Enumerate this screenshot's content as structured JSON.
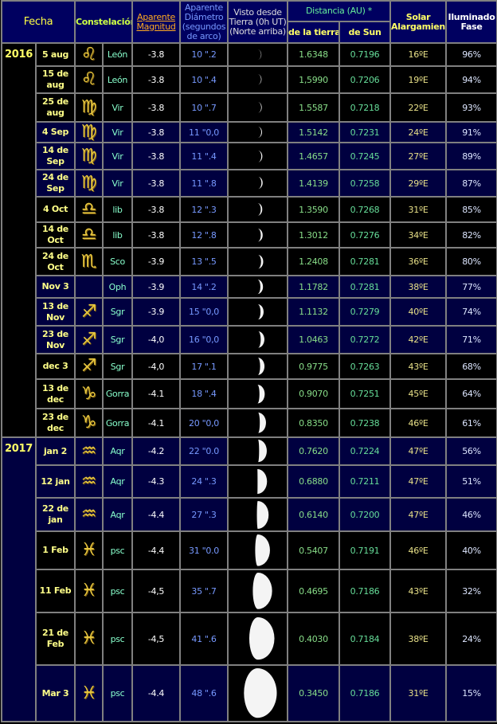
{
  "header": {
    "fecha": "Fecha",
    "constelacion": "Constelación",
    "magnitud": "Aparente Magnitud",
    "diametro": "Aparente Diámetro (segundos de arco)",
    "visto": "Visto desde Tierra (0h UT) (Norte arriba)",
    "distancia": "Distancia (AU) *",
    "de_la_tierra": "de la tierra",
    "de_sun": "de Sun",
    "elongacion": "Solar Alargamiento",
    "fase": "Iluminado Fase"
  },
  "colors": {
    "header_bg": "#000060",
    "navy_row": "#000040",
    "black_row": "#000000",
    "grid": "#808080"
  },
  "years": [
    {
      "year": "2016",
      "rows": 15,
      "bg": "black"
    },
    {
      "year": "2017",
      "rows": 7,
      "bg": "navy"
    }
  ],
  "rows": [
    {
      "date": "5 aug",
      "icon": "leo-icon",
      "const": "León",
      "mag": "-3.8",
      "diam": "10 \".2",
      "earth": "1.6348",
      "sun": "0.7196",
      "elong": "16ºE",
      "phase": "96%",
      "bg": "black"
    },
    {
      "date": "15 de aug",
      "icon": "leo-icon",
      "const": "León",
      "mag": "-3.8",
      "diam": "10 \".4",
      "earth": "1,5990",
      "sun": "0.7206",
      "elong": "19ºE",
      "phase": "94%",
      "bg": "black"
    },
    {
      "date": "25 de aug",
      "icon": "virgo-icon",
      "const": "Vir",
      "mag": "-3.8",
      "diam": "10 \".7",
      "earth": "1.5587",
      "sun": "0.7218",
      "elong": "22ºE",
      "phase": "93%",
      "bg": "black"
    },
    {
      "date": "4 Sep",
      "icon": "virgo-icon",
      "const": "Vir",
      "mag": "-3.8",
      "diam": "11 \"0,0",
      "earth": "1.5142",
      "sun": "0.7231",
      "elong": "24ºE",
      "phase": "91%",
      "bg": "navy"
    },
    {
      "date": "14 de Sep",
      "icon": "virgo-icon",
      "const": "Vir",
      "mag": "-3.8",
      "diam": "11 \".4",
      "earth": "1.4657",
      "sun": "0.7245",
      "elong": "27ºE",
      "phase": "89%",
      "bg": "navy"
    },
    {
      "date": "24 de Sep",
      "icon": "virgo-icon",
      "const": "Vir",
      "mag": "-3.8",
      "diam": "11 \".8",
      "earth": "1.4139",
      "sun": "0.7258",
      "elong": "29ºE",
      "phase": "87%",
      "bg": "navy"
    },
    {
      "date": "4 Oct",
      "icon": "libra-icon",
      "const": "lib",
      "mag": "-3.8",
      "diam": "12 \".3",
      "earth": "1.3590",
      "sun": "0.7268",
      "elong": "31ºE",
      "phase": "85%",
      "bg": "black"
    },
    {
      "date": "14 de Oct",
      "icon": "libra-icon",
      "const": "lib",
      "mag": "-3.8",
      "diam": "12 \".8",
      "earth": "1.3012",
      "sun": "0.7276",
      "elong": "34ºE",
      "phase": "82%",
      "bg": "black"
    },
    {
      "date": "24 de Oct",
      "icon": "scorpio-icon",
      "const": "Sco",
      "mag": "-3.9",
      "diam": "13 \".5",
      "earth": "1.2408",
      "sun": "0.7281",
      "elong": "36ºE",
      "phase": "80%",
      "bg": "black"
    },
    {
      "date": "Nov 3",
      "icon": "",
      "const": "Oph",
      "mag": "-3.9",
      "diam": "14 \".2",
      "earth": "1.1782",
      "sun": "0.7281",
      "elong": "38ºE",
      "phase": "77%",
      "bg": "navy"
    },
    {
      "date": "13 de Nov",
      "icon": "sagittarius-icon",
      "const": "Sgr",
      "mag": "-3.9",
      "diam": "15 \"0,0",
      "earth": "1.1132",
      "sun": "0.7279",
      "elong": "40ºE",
      "phase": "74%",
      "bg": "navy"
    },
    {
      "date": "23 de Nov",
      "icon": "sagittarius-icon",
      "const": "Sgr",
      "mag": "-4,0",
      "diam": "16 \"0,0",
      "earth": "1.0463",
      "sun": "0.7272",
      "elong": "42ºE",
      "phase": "71%",
      "bg": "navy"
    },
    {
      "date": "dec 3",
      "icon": "sagittarius-icon",
      "const": "Sgr",
      "mag": "-4,0",
      "diam": "17 \".1",
      "earth": "0.9775",
      "sun": "0.7263",
      "elong": "43ºE",
      "phase": "68%",
      "bg": "black"
    },
    {
      "date": "13 de dec",
      "icon": "capricorn-icon",
      "const": "Gorra",
      "mag": "-4.1",
      "diam": "18 \".4",
      "earth": "0.9070",
      "sun": "0.7251",
      "elong": "45ºE",
      "phase": "64%",
      "bg": "black"
    },
    {
      "date": "23 de dec",
      "icon": "capricorn-icon",
      "const": "Gorra",
      "mag": "-4.1",
      "diam": "20 \"0,0",
      "earth": "0.8350",
      "sun": "0.7238",
      "elong": "46ºE",
      "phase": "61%",
      "bg": "black"
    },
    {
      "date": "jan 2",
      "icon": "aquarius-icon",
      "const": "Aqr",
      "mag": "-4.2",
      "diam": "22 \"0.0",
      "earth": "0.7620",
      "sun": "0.7224",
      "elong": "47ºE",
      "phase": "56%",
      "bg": "navy"
    },
    {
      "date": "12 jan",
      "icon": "aquarius-icon",
      "const": "Aqr",
      "mag": "-4.3",
      "diam": "24 \".3",
      "earth": "0.6880",
      "sun": "0.7211",
      "elong": "47ºE",
      "phase": "51%",
      "bg": "navy"
    },
    {
      "date": "22 de jan",
      "icon": "aquarius-icon",
      "const": "Aqr",
      "mag": "-4.4",
      "diam": "27 \".3",
      "earth": "0.6140",
      "sun": "0.7200",
      "elong": "47ºE",
      "phase": "46%",
      "bg": "navy"
    },
    {
      "date": "1 Feb",
      "icon": "pisces-icon",
      "const": "psc",
      "mag": "-4.4",
      "diam": "31 \"0.0",
      "earth": "0.5407",
      "sun": "0.7191",
      "elong": "46ºE",
      "phase": "40%",
      "bg": "black"
    },
    {
      "date": "11 Feb",
      "icon": "pisces-icon",
      "const": "psc",
      "mag": "-4,5",
      "diam": "35 \".7",
      "earth": "0.4695",
      "sun": "0.7186",
      "elong": "43ºE",
      "phase": "32%",
      "bg": "black"
    },
    {
      "date": "21 de Feb",
      "icon": "pisces-icon",
      "const": "psc",
      "mag": "-4,5",
      "diam": "41 \".6",
      "earth": "0.4030",
      "sun": "0.7184",
      "elong": "38ºE",
      "phase": "24%",
      "bg": "black"
    },
    {
      "date": "Mar 3",
      "icon": "pisces-icon",
      "const": "psc",
      "mag": "-4.4",
      "diam": "48 \".6",
      "earth": "0.3450",
      "sun": "0.7186",
      "elong": "31ºE",
      "phase": "15%",
      "bg": "navy"
    }
  ]
}
